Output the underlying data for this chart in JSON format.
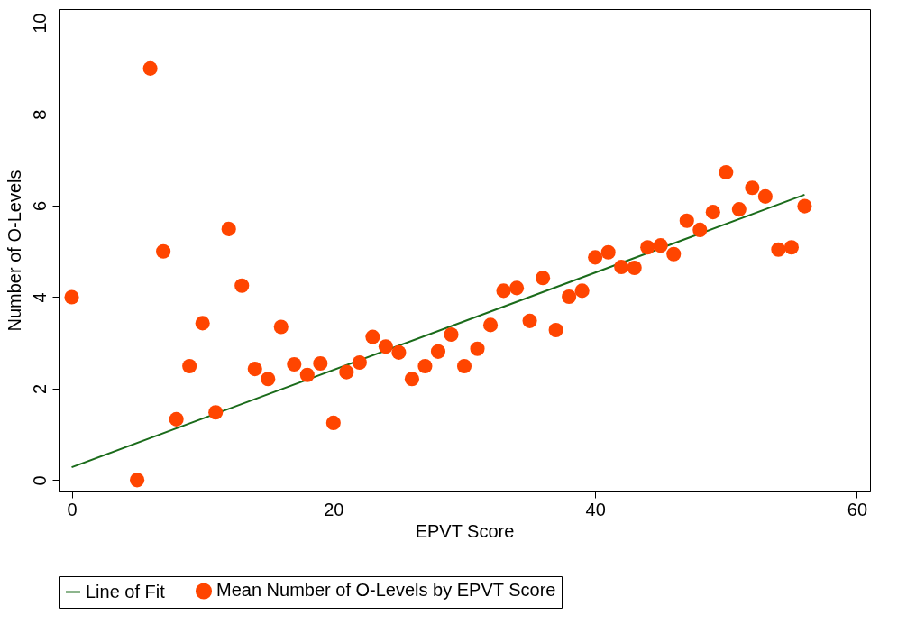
{
  "chart_data": {
    "type": "scatter",
    "xlabel": "EPVT Score",
    "ylabel": "Number of O-Levels",
    "xlim": [
      -1,
      61
    ],
    "ylim": [
      -0.25,
      10.3
    ],
    "xticks": [
      0,
      20,
      40,
      60
    ],
    "yticks": [
      0,
      2,
      4,
      6,
      8,
      10
    ],
    "grid": false,
    "legend": "bottom",
    "series": [
      {
        "name": "Line of Fit",
        "type": "line",
        "color": "#1a6b1a",
        "line_style": "solid",
        "x": [
          0,
          56
        ],
        "values": [
          0.28,
          6.24
        ]
      },
      {
        "name": "Mean Number of O-Levels by EPVT Score",
        "color": "#ff4500",
        "marker": "circle",
        "x": [
          0,
          5,
          6,
          7,
          8,
          9,
          10,
          11,
          12,
          13,
          14,
          15,
          16,
          17,
          18,
          19,
          20,
          21,
          22,
          23,
          24,
          25,
          26,
          27,
          28,
          29,
          30,
          31,
          32,
          33,
          34,
          35,
          36,
          37,
          38,
          39,
          40,
          41,
          42,
          43,
          44,
          45,
          46,
          47,
          48,
          49,
          50,
          51,
          52,
          53,
          54,
          55,
          56
        ],
        "values": [
          4.0,
          0,
          9.0,
          5.0,
          1.33,
          2.49,
          3.43,
          1.48,
          5.49,
          4.25,
          2.43,
          2.21,
          3.35,
          2.53,
          2.3,
          2.55,
          1.25,
          2.36,
          2.57,
          3.13,
          2.92,
          2.79,
          2.21,
          2.49,
          2.81,
          3.18,
          2.49,
          2.87,
          3.39,
          4.14,
          4.2,
          3.48,
          4.42,
          3.28,
          4.01,
          4.14,
          4.87,
          4.98,
          4.66,
          4.64,
          5.09,
          5.13,
          4.94,
          5.67,
          5.47,
          5.86,
          6.73,
          5.92,
          6.39,
          6.2,
          5.04,
          5.09,
          5.99
        ]
      }
    ]
  }
}
